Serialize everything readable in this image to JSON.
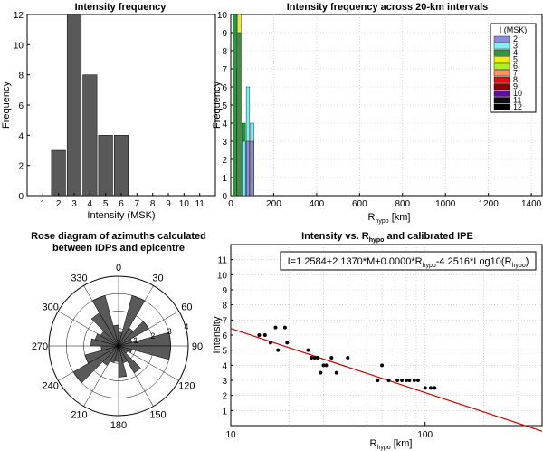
{
  "chart_data": [
    {
      "type": "bar",
      "title": "Intensity frequency",
      "xlabel": "Intensity (MSK)",
      "ylabel": "Frequency",
      "categories": [
        "1",
        "2",
        "3",
        "4",
        "5",
        "6",
        "7",
        "8",
        "9",
        "10",
        "11"
      ],
      "values": [
        0,
        3,
        12,
        8,
        4,
        4,
        0,
        0,
        0,
        0,
        0
      ],
      "ylim": [
        0,
        12
      ],
      "yticks": [
        "0",
        "2",
        "4",
        "6",
        "8",
        "10",
        "12"
      ],
      "bar_color": "#595959"
    },
    {
      "type": "bar",
      "title": "Intensity frequency across 20-km intervals",
      "xlabel_main": "R",
      "xlabel_sub": "hypo",
      "xlabel_unit": " [km]",
      "ylabel": "Frequency",
      "xlim": [
        0,
        1450
      ],
      "ylim": [
        0,
        10
      ],
      "xticks": [
        0,
        200,
        400,
        600,
        800,
        1000,
        1200,
        1400
      ],
      "xtick_labels": [
        "0",
        "200",
        "400",
        "600",
        "800",
        "1000",
        "1200",
        "1400"
      ],
      "yticks": [
        "0",
        "1",
        "2",
        "3",
        "4",
        "5",
        "6",
        "7",
        "8",
        "9",
        "10"
      ],
      "bin_width": 20,
      "legend_title": "I (MSK)",
      "legend": [
        {
          "label": "2",
          "color": "#8c8cdc"
        },
        {
          "label": "3",
          "color": "#7ff0f0"
        },
        {
          "label": "4",
          "color": "#2a9a3a"
        },
        {
          "label": "5",
          "color": "#f0f000"
        },
        {
          "label": "6",
          "color": "#b0f020"
        },
        {
          "label": "7",
          "color": "#ff9060"
        },
        {
          "label": "8",
          "color": "#e01010"
        },
        {
          "label": "9",
          "color": "#900000"
        },
        {
          "label": "10",
          "color": "#6010a0"
        },
        {
          "label": "11",
          "color": "#101010"
        },
        {
          "label": "12",
          "color": "#000000"
        }
      ],
      "series": [
        {
          "x": 20,
          "value": 7,
          "level": "5"
        },
        {
          "x": 20,
          "value": 10,
          "level": "4"
        },
        {
          "x": 40,
          "value": 10,
          "level": "5"
        },
        {
          "x": 40,
          "value": 9,
          "level": "4"
        },
        {
          "x": 60,
          "value": 4,
          "level": "4"
        },
        {
          "x": 60,
          "value": 3,
          "level": "3"
        },
        {
          "x": 80,
          "value": 6,
          "level": "3"
        },
        {
          "x": 80,
          "value": 3,
          "level": "2"
        },
        {
          "x": 100,
          "value": 4,
          "level": "3"
        },
        {
          "x": 100,
          "value": 3,
          "level": "2"
        }
      ]
    },
    {
      "type": "rose",
      "title_lines": [
        "Rose diagram of azimuths calculated",
        "between  IDPs and epicentre"
      ],
      "angle_labels": [
        "0",
        "30",
        "60",
        "90",
        "120",
        "150",
        "180",
        "210",
        "240",
        "270",
        "300",
        "330"
      ],
      "radial_labels": [
        "1",
        "2",
        "3",
        "4"
      ],
      "rmax": 4,
      "sector_width_deg": 15,
      "sectors": [
        {
          "azimuth": 352.5,
          "value": 1.2
        },
        {
          "azimuth": 7.5,
          "value": 0.8
        },
        {
          "azimuth": 22.5,
          "value": 3.0
        },
        {
          "azimuth": 37.5,
          "value": 1.2
        },
        {
          "azimuth": 52.5,
          "value": 2.0
        },
        {
          "azimuth": 67.5,
          "value": 0.8
        },
        {
          "azimuth": 82.5,
          "value": 3.0
        },
        {
          "azimuth": 97.5,
          "value": 3.0
        },
        {
          "azimuth": 112.5,
          "value": 0.8
        },
        {
          "azimuth": 127.5,
          "value": 0.6
        },
        {
          "azimuth": 142.5,
          "value": 1.8
        },
        {
          "azimuth": 157.5,
          "value": 1.0
        },
        {
          "azimuth": 172.5,
          "value": 1.8
        },
        {
          "azimuth": 187.5,
          "value": 0.9
        },
        {
          "azimuth": 202.5,
          "value": 1.0
        },
        {
          "azimuth": 217.5,
          "value": 1.3
        },
        {
          "azimuth": 232.5,
          "value": 3.0
        },
        {
          "azimuth": 247.5,
          "value": 2.0
        },
        {
          "azimuth": 262.5,
          "value": 1.0
        },
        {
          "azimuth": 277.5,
          "value": 1.6
        },
        {
          "azimuth": 292.5,
          "value": 1.4
        },
        {
          "azimuth": 307.5,
          "value": 1.2
        },
        {
          "azimuth": 322.5,
          "value": 2.2
        },
        {
          "azimuth": 337.5,
          "value": 3.0
        }
      ],
      "fill_color": "#595959"
    },
    {
      "type": "scatter",
      "title_main": "Intensity vs. R",
      "title_sub": "hypo",
      "title_end": " and calibrated IPE",
      "xlabel_main": "R",
      "xlabel_sub": "hypo",
      "xlabel_unit": " [km]",
      "ylabel": "Intensity",
      "xscale": "log",
      "xlim": [
        10,
        400
      ],
      "ylim": [
        0,
        12
      ],
      "xticks": [
        10,
        100
      ],
      "xtick_labels": [
        "10",
        "100"
      ],
      "yticks": [
        "1",
        "2",
        "3",
        "4",
        "5",
        "6",
        "7",
        "8",
        "9",
        "10",
        "11"
      ],
      "equation_main": "I=1.2584+2.1370*M+0.0000*R",
      "equation_sub1": "hypo",
      "equation_mid": "-4.2516*Log10(R",
      "equation_sub2": "hypo",
      "equation_end": ")",
      "fit_line": {
        "x": [
          10,
          400
        ],
        "y": [
          6.44,
          -0.37
        ],
        "color": "#cc0000"
      },
      "points": [
        {
          "x": 14,
          "y": 6
        },
        {
          "x": 15,
          "y": 6
        },
        {
          "x": 16,
          "y": 5.5
        },
        {
          "x": 17,
          "y": 6.5
        },
        {
          "x": 17.5,
          "y": 5
        },
        {
          "x": 19,
          "y": 6.5
        },
        {
          "x": 19.5,
          "y": 5.5
        },
        {
          "x": 25,
          "y": 5
        },
        {
          "x": 26,
          "y": 4.5
        },
        {
          "x": 27,
          "y": 4.5
        },
        {
          "x": 28,
          "y": 4.5
        },
        {
          "x": 29,
          "y": 3.5
        },
        {
          "x": 30,
          "y": 4
        },
        {
          "x": 31,
          "y": 4
        },
        {
          "x": 33,
          "y": 4.5
        },
        {
          "x": 35,
          "y": 3.5
        },
        {
          "x": 40,
          "y": 4.5
        },
        {
          "x": 57,
          "y": 3
        },
        {
          "x": 60,
          "y": 4
        },
        {
          "x": 65,
          "y": 3
        },
        {
          "x": 72,
          "y": 3
        },
        {
          "x": 76,
          "y": 3
        },
        {
          "x": 80,
          "y": 3
        },
        {
          "x": 83,
          "y": 3
        },
        {
          "x": 88,
          "y": 3
        },
        {
          "x": 92,
          "y": 3
        },
        {
          "x": 100,
          "y": 2.5
        },
        {
          "x": 107,
          "y": 2.5
        },
        {
          "x": 112,
          "y": 2.5
        }
      ]
    }
  ]
}
